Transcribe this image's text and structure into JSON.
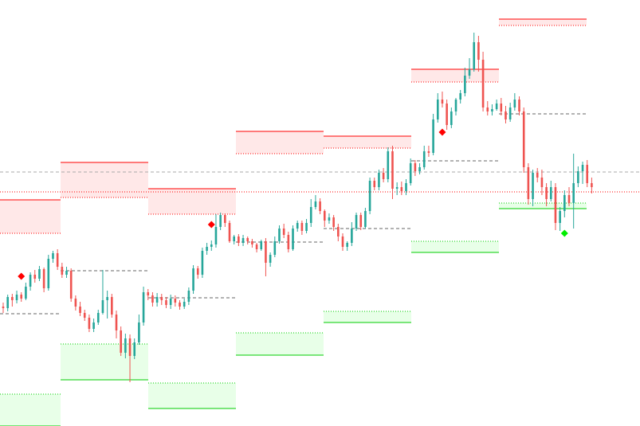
{
  "chart_data": {
    "type": "candlestick",
    "title": "",
    "xlabel": "",
    "ylabel": "",
    "ylim": [
      0,
      535
    ],
    "grid": false,
    "colors": {
      "up": "#26a69a",
      "down": "#ef5350",
      "resistance": "#ff0000",
      "support": "#00cc00",
      "resistance_zone": "#ffe8e8",
      "support_zone": "#e8ffe8",
      "pivot": "#666666",
      "current_price": "#aaaaaa",
      "sell_marker": "#ff0000",
      "buy_marker": "#00ee00"
    },
    "current_price": {
      "dashed_level": 319,
      "dotted_level": 294
    },
    "sessions": [
      {
        "resistance_top": 284,
        "resistance_bottom": 242,
        "pivot": 141,
        "support_top": 40,
        "support_bottom": 0
      },
      {
        "resistance_top": 331,
        "resistance_bottom": 287,
        "pivot": 195,
        "support_top": 103,
        "support_bottom": 58
      },
      {
        "resistance_top": 298,
        "resistance_bottom": 266,
        "pivot": 161,
        "support_top": 54,
        "support_bottom": 22
      },
      {
        "resistance_top": 370,
        "resistance_bottom": 342,
        "pivot": 231,
        "support_top": 117,
        "support_bottom": 89
      },
      {
        "resistance_top": 364,
        "resistance_bottom": 349,
        "pivot": 248,
        "support_top": 144,
        "support_bottom": 130
      },
      {
        "resistance_top": 448,
        "resistance_bottom": 432,
        "pivot": 333,
        "support_top": 232,
        "support_bottom": 218
      },
      {
        "resistance_top": 511,
        "resistance_bottom": 503,
        "pivot": 392,
        "support_top": 280,
        "support_bottom": 273
      }
    ],
    "markers": [
      {
        "type": "sell",
        "index": 4,
        "value": 188
      },
      {
        "type": "sell",
        "index": 46,
        "value": 253
      },
      {
        "type": "sell",
        "index": 97,
        "value": 369
      },
      {
        "type": "buy",
        "index": 124,
        "value": 242
      }
    ],
    "candles": [
      [
        150,
        148,
        155,
        142
      ],
      [
        148,
        162,
        165,
        144
      ],
      [
        162,
        158,
        166,
        150
      ],
      [
        158,
        165,
        170,
        154
      ],
      [
        165,
        160,
        168,
        156
      ],
      [
        160,
        175,
        180,
        158
      ],
      [
        175,
        190,
        193,
        170
      ],
      [
        190,
        185,
        196,
        180
      ],
      [
        185,
        197,
        201,
        182
      ],
      [
        197,
        173,
        199,
        168
      ],
      [
        173,
        210,
        215,
        170
      ],
      [
        210,
        217,
        220,
        205
      ],
      [
        217,
        200,
        222,
        196
      ],
      [
        200,
        190,
        205,
        186
      ],
      [
        190,
        195,
        200,
        186
      ],
      [
        195,
        160,
        198,
        156
      ],
      [
        160,
        150,
        164,
        145
      ],
      [
        150,
        142,
        156,
        138
      ],
      [
        142,
        136,
        146,
        132
      ],
      [
        136,
        122,
        140,
        118
      ],
      [
        122,
        130,
        135,
        118
      ],
      [
        130,
        142,
        146,
        127
      ],
      [
        142,
        158,
        196,
        140
      ],
      [
        158,
        162,
        170,
        135
      ],
      [
        162,
        140,
        166,
        136
      ],
      [
        140,
        120,
        145,
        110
      ],
      [
        120,
        92,
        125,
        88
      ],
      [
        92,
        110,
        116,
        85
      ],
      [
        110,
        88,
        115,
        55
      ],
      [
        88,
        105,
        110,
        84
      ],
      [
        105,
        130,
        140,
        102
      ],
      [
        130,
        168,
        175,
        126
      ],
      [
        168,
        164,
        172,
        158
      ],
      [
        164,
        155,
        168,
        150
      ],
      [
        155,
        162,
        167,
        150
      ],
      [
        162,
        158,
        166,
        152
      ],
      [
        158,
        152,
        162,
        148
      ],
      [
        152,
        160,
        165,
        147
      ],
      [
        160,
        155,
        164,
        150
      ],
      [
        155,
        150,
        158,
        146
      ],
      [
        150,
        156,
        160,
        147
      ],
      [
        156,
        170,
        174,
        152
      ],
      [
        170,
        198,
        202,
        166
      ],
      [
        198,
        190,
        201,
        185
      ],
      [
        190,
        220,
        224,
        186
      ],
      [
        220,
        225,
        230,
        215
      ],
      [
        225,
        228,
        233,
        220
      ],
      [
        228,
        250,
        266,
        224
      ],
      [
        250,
        265,
        268,
        246
      ],
      [
        265,
        255,
        267,
        250
      ],
      [
        255,
        232,
        258,
        230
      ],
      [
        232,
        238,
        240,
        228
      ],
      [
        238,
        230,
        241,
        226
      ],
      [
        230,
        236,
        240,
        226
      ],
      [
        236,
        232,
        238,
        228
      ],
      [
        232,
        228,
        235,
        224
      ],
      [
        228,
        222,
        230,
        218
      ],
      [
        222,
        232,
        234,
        220
      ],
      [
        232,
        205,
        236,
        188
      ],
      [
        205,
        215,
        218,
        200
      ],
      [
        215,
        232,
        238,
        212
      ],
      [
        232,
        248,
        252,
        229
      ],
      [
        248,
        240,
        254,
        236
      ],
      [
        240,
        222,
        244,
        218
      ],
      [
        222,
        248,
        252,
        220
      ],
      [
        248,
        255,
        258,
        244
      ],
      [
        255,
        245,
        258,
        240
      ],
      [
        245,
        255,
        260,
        242
      ],
      [
        255,
        275,
        285,
        250
      ],
      [
        275,
        282,
        290,
        272
      ],
      [
        282,
        270,
        286,
        266
      ],
      [
        270,
        258,
        272,
        250
      ],
      [
        258,
        262,
        267,
        254
      ],
      [
        262,
        250,
        265,
        245
      ],
      [
        250,
        238,
        254,
        232
      ],
      [
        238,
        225,
        242,
        220
      ],
      [
        225,
        230,
        232,
        220
      ],
      [
        230,
        248,
        256,
        226
      ],
      [
        248,
        265,
        268,
        245
      ],
      [
        265,
        250,
        268,
        246
      ],
      [
        250,
        270,
        274,
        248
      ],
      [
        270,
        308,
        312,
        266
      ],
      [
        308,
        300,
        312,
        296
      ],
      [
        300,
        318,
        322,
        296
      ],
      [
        318,
        310,
        324,
        306
      ],
      [
        310,
        345,
        350,
        306
      ],
      [
        345,
        298,
        352,
        285
      ],
      [
        298,
        300,
        306,
        290
      ],
      [
        300,
        295,
        307,
        290
      ],
      [
        295,
        305,
        310,
        290
      ],
      [
        305,
        330,
        336,
        302
      ],
      [
        330,
        320,
        334,
        314
      ],
      [
        320,
        325,
        330,
        316
      ],
      [
        325,
        345,
        352,
        322
      ],
      [
        345,
        343,
        352,
        338
      ],
      [
        343,
        385,
        392,
        340
      ],
      [
        385,
        410,
        418,
        381
      ],
      [
        410,
        405,
        420,
        400
      ],
      [
        405,
        378,
        410,
        372
      ],
      [
        378,
        395,
        400,
        374
      ],
      [
        395,
        410,
        412,
        390
      ],
      [
        410,
        418,
        422,
        405
      ],
      [
        418,
        440,
        450,
        414
      ],
      [
        440,
        448,
        462,
        436
      ],
      [
        448,
        482,
        494,
        445
      ],
      [
        482,
        460,
        490,
        445
      ],
      [
        460,
        400,
        470,
        395
      ],
      [
        400,
        395,
        408,
        390
      ],
      [
        395,
        398,
        404,
        390
      ],
      [
        398,
        405,
        410,
        396
      ],
      [
        405,
        395,
        412,
        390
      ],
      [
        395,
        385,
        402,
        380
      ],
      [
        385,
        400,
        406,
        382
      ],
      [
        400,
        410,
        418,
        396
      ],
      [
        410,
        395,
        414,
        390
      ],
      [
        395,
        325,
        400,
        318
      ],
      [
        325,
        285,
        330,
        278
      ],
      [
        285,
        318,
        322,
        276
      ],
      [
        318,
        312,
        324,
        306
      ],
      [
        312,
        300,
        322,
        290
      ],
      [
        300,
        285,
        305,
        276
      ],
      [
        285,
        300,
        308,
        282
      ],
      [
        300,
        255,
        305,
        246
      ],
      [
        255,
        270,
        275,
        245
      ],
      [
        270,
        290,
        296,
        262
      ],
      [
        290,
        280,
        300,
        276
      ],
      [
        280,
        305,
        342,
        248
      ],
      [
        305,
        320,
        326,
        300
      ],
      [
        320,
        328,
        332,
        304
      ],
      [
        328,
        305,
        334,
        300
      ],
      [
        305,
        300,
        312,
        292
      ]
    ]
  }
}
